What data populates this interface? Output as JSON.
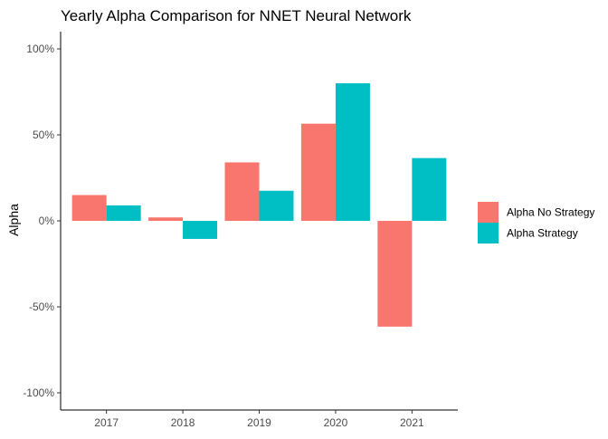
{
  "chart_data": {
    "type": "bar",
    "title": "Yearly Alpha Comparison for NNET Neural Network",
    "xlabel": "",
    "ylabel": "Alpha",
    "categories": [
      "2017",
      "2018",
      "2019",
      "2020",
      "2021"
    ],
    "series": [
      {
        "name": "Alpha No Strategy",
        "color": "#F8766D",
        "values": [
          15,
          2,
          34,
          56.5,
          -61.5
        ]
      },
      {
        "name": "Alpha Strategy",
        "color": "#00BFC4",
        "values": [
          9,
          -10.5,
          17.5,
          80,
          36.5
        ]
      }
    ],
    "ylim": [
      -110,
      110
    ],
    "yticks": [
      -100,
      -50,
      0,
      50,
      100
    ],
    "ytick_labels": [
      "-100%",
      "-50%",
      "0%",
      "50%",
      "100%"
    ],
    "grid": false,
    "legend_position": "right"
  }
}
